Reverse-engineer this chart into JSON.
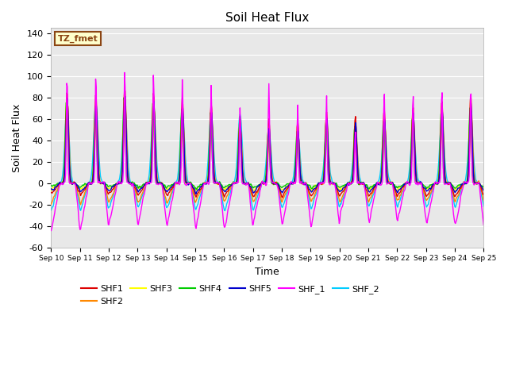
{
  "title": "Soil Heat Flux",
  "xlabel": "Time",
  "ylabel": "Soil Heat Flux",
  "ylim": [
    -60,
    145
  ],
  "bg_color": "#e8e8e8",
  "fig_color": "#ffffff",
  "annotation_text": "TZ_fmet",
  "annotation_bg": "#ffffcc",
  "annotation_border": "#8B4513",
  "series": {
    "SHF1": {
      "color": "#dd0000"
    },
    "SHF2": {
      "color": "#ff8800"
    },
    "SHF3": {
      "color": "#ffff00"
    },
    "SHF4": {
      "color": "#00cc00"
    },
    "SHF5": {
      "color": "#0000cc"
    },
    "SHF_1": {
      "color": "#ff00ff"
    },
    "SHF_2": {
      "color": "#00ccff"
    }
  },
  "xtick_labels": [
    "Sep 10",
    "Sep 11",
    "Sep 12",
    "Sep 13",
    "Sep 14",
    "Sep 15",
    "Sep 16",
    "Sep 17",
    "Sep 18",
    "Sep 19",
    "Sep 20",
    "Sep 21",
    "Sep 22",
    "Sep 23",
    "Sep 24",
    "Sep 25"
  ],
  "ytick_values": [
    -60,
    -40,
    -20,
    0,
    20,
    40,
    60,
    80,
    100,
    120,
    140
  ],
  "shf1_peaks": [
    90,
    85,
    93,
    88,
    82,
    78,
    65,
    62,
    60,
    70,
    65,
    72,
    75,
    80,
    85
  ],
  "shf2_peaks": [
    75,
    70,
    78,
    72,
    65,
    62,
    50,
    47,
    45,
    55,
    50,
    57,
    60,
    65,
    70
  ],
  "shf3_peaks": [
    85,
    80,
    88,
    83,
    77,
    73,
    60,
    57,
    55,
    65,
    60,
    67,
    70,
    75,
    80
  ],
  "shf4_peaks": [
    80,
    75,
    83,
    78,
    72,
    68,
    55,
    52,
    50,
    60,
    55,
    62,
    65,
    70,
    75
  ],
  "shf5_peaks": [
    82,
    77,
    85,
    80,
    74,
    70,
    57,
    54,
    52,
    62,
    57,
    64,
    67,
    72,
    77
  ],
  "shf_1_peaks": [
    115,
    118,
    121,
    116,
    111,
    105,
    80,
    105,
    82,
    93,
    55,
    97,
    96,
    101,
    102
  ],
  "shf_2_peaks": [
    70,
    75,
    73,
    70,
    68,
    65,
    65,
    50,
    48,
    50,
    45,
    52,
    55,
    62,
    65
  ],
  "shf1_nights": [
    -10,
    -12,
    -10,
    -11,
    -12,
    -13,
    -12,
    -13,
    -12,
    -13,
    -12,
    -13,
    -12,
    -13,
    -12
  ],
  "shf2_nights": [
    -18,
    -20,
    -18,
    -19,
    -20,
    -18,
    -17,
    -18,
    -17,
    -18,
    -18,
    -18,
    -17,
    -18,
    -17
  ],
  "shf3_nights": [
    -5,
    -6,
    -5,
    -6,
    -6,
    -7,
    -6,
    -7,
    -6,
    -7,
    -6,
    -7,
    -6,
    -7,
    -6
  ],
  "shf4_nights": [
    -3,
    -4,
    -3,
    -4,
    -4,
    -5,
    -4,
    -5,
    -4,
    -5,
    -4,
    -5,
    -4,
    -5,
    -4
  ],
  "shf5_nights": [
    -7,
    -8,
    -7,
    -8,
    -8,
    -9,
    -8,
    -9,
    -8,
    -9,
    -8,
    -9,
    -8,
    -9,
    -8
  ],
  "shf_1_nights": [
    -45,
    -46,
    -38,
    -40,
    -42,
    -44,
    -45,
    -38,
    -40,
    -42,
    -30,
    -38,
    -35,
    -40,
    -42
  ],
  "shf_2_nights": [
    -25,
    -27,
    -23,
    -24,
    -25,
    -26,
    -27,
    -25,
    -24,
    -25,
    -22,
    -24,
    -22,
    -24,
    -23
  ]
}
